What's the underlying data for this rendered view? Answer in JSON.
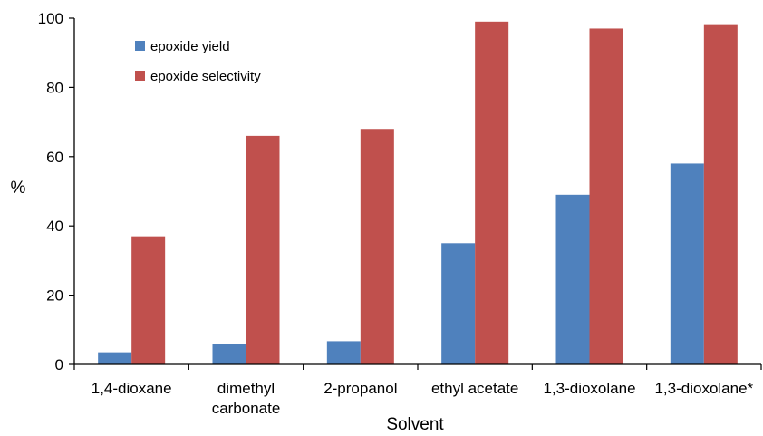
{
  "chart_data": {
    "type": "bar",
    "categories": [
      [
        "1,4-dioxane"
      ],
      [
        "dimethyl",
        "carbonate"
      ],
      [
        "2-propanol"
      ],
      [
        "ethyl acetate"
      ],
      [
        "1,3-dioxolane"
      ],
      [
        "1,3-dioxolane*"
      ]
    ],
    "series": [
      {
        "name": "epoxide yield",
        "color": "#4f81bd",
        "values": [
          3.5,
          5.8,
          6.7,
          35,
          49,
          58
        ]
      },
      {
        "name": "epoxide selectivity",
        "color": "#c0504d",
        "values": [
          37,
          66,
          68,
          99,
          97,
          98
        ]
      }
    ],
    "title": "",
    "xlabel": "Solvent",
    "ylabel": "%",
    "ylim": [
      0,
      100
    ],
    "yticks": [
      0,
      20,
      40,
      60,
      80,
      100
    ],
    "grid": false,
    "legend_position": "top-left inside plot"
  }
}
